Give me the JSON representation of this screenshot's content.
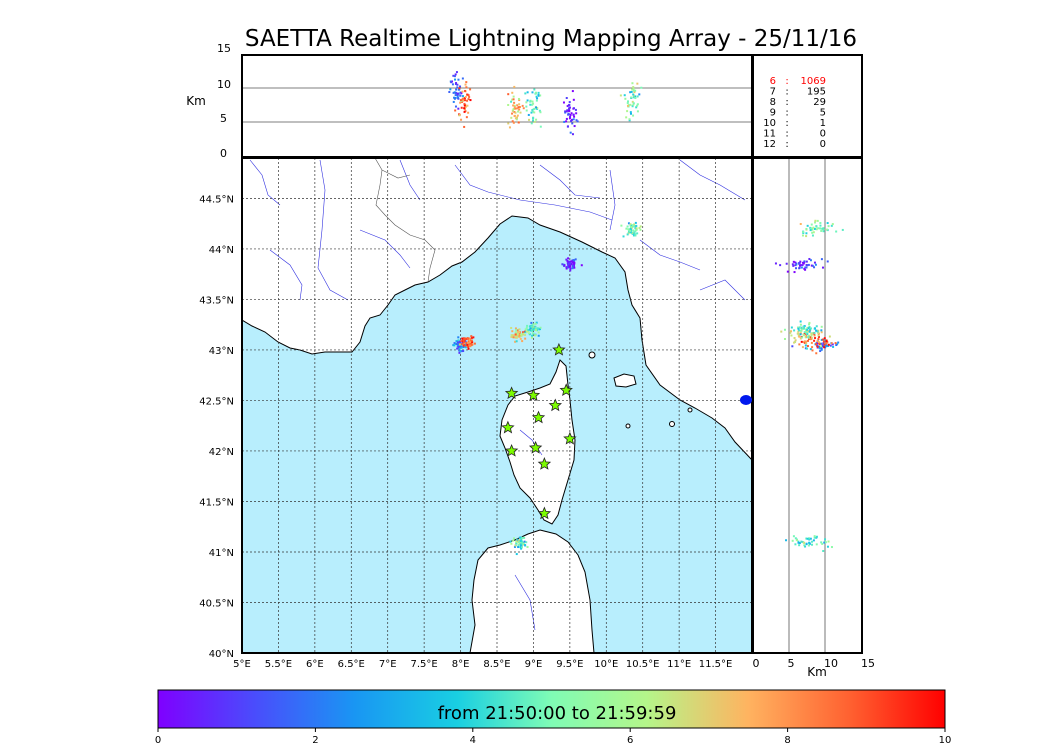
{
  "title": "SAETTA Realtime Lightning Mapping Array - 25/11/16",
  "colorbar": {
    "label": "from 21:50:00 to 21:59:59",
    "ticks": [
      "0",
      "2",
      "4",
      "6",
      "8",
      "10"
    ]
  },
  "chart_data": [
    {
      "type": "scatter",
      "panel": "altitude-vs-longitude",
      "ylabel": "Km",
      "ylim": [
        0,
        15
      ],
      "yticks": [
        "0",
        "5",
        "10",
        "15"
      ],
      "x_range_deg": [
        5,
        12
      ],
      "clusters": [
        {
          "lon": 7.95,
          "alt": 9.5,
          "time": 1.5
        },
        {
          "lon": 8.05,
          "alt": 8.5,
          "time": 8.5
        },
        {
          "lon": 8.75,
          "alt": 7.0,
          "time": 7.0
        },
        {
          "lon": 9.0,
          "alt": 7.5,
          "time": 4.5
        },
        {
          "lon": 9.5,
          "alt": 6.5,
          "time": 0.5
        },
        {
          "lon": 10.35,
          "alt": 8.5,
          "time": 5.0
        }
      ]
    },
    {
      "type": "scatter",
      "panel": "plan-view-map",
      "xlim": [
        5,
        12
      ],
      "ylim": [
        40,
        45
      ],
      "xticks": [
        "5°E",
        "5.5°E",
        "6°E",
        "6.5°E",
        "7°E",
        "7.5°E",
        "8°E",
        "8.5°E",
        "9°E",
        "9.5°E",
        "10°E",
        "10.5°E",
        "11°E",
        "11.5°E"
      ],
      "yticks": [
        "40°N",
        "40.5°N",
        "41°N",
        "41.5°N",
        "42°N",
        "42.5°N",
        "43°N",
        "43.5°N",
        "44°N",
        "44.5°N"
      ],
      "grid": true,
      "clusters": [
        {
          "lon": 8.0,
          "lat": 43.05,
          "time": 2.0
        },
        {
          "lon": 8.1,
          "lat": 43.08,
          "time": 9.0
        },
        {
          "lon": 8.8,
          "lat": 43.15,
          "time": 7.0
        },
        {
          "lon": 9.0,
          "lat": 43.2,
          "time": 4.5
        },
        {
          "lon": 9.5,
          "lat": 43.85,
          "time": 0.5
        },
        {
          "lon": 10.35,
          "lat": 44.2,
          "time": 5.0
        },
        {
          "lon": 8.8,
          "lat": 41.1,
          "time": 4.5
        }
      ],
      "stations": [
        {
          "lon": 9.35,
          "lat": 43.0
        },
        {
          "lon": 8.7,
          "lat": 42.57
        },
        {
          "lon": 9.0,
          "lat": 42.55
        },
        {
          "lon": 9.45,
          "lat": 42.6
        },
        {
          "lon": 9.3,
          "lat": 42.45
        },
        {
          "lon": 9.07,
          "lat": 42.33
        },
        {
          "lon": 8.65,
          "lat": 42.23
        },
        {
          "lon": 9.5,
          "lat": 42.12
        },
        {
          "lon": 9.03,
          "lat": 42.03
        },
        {
          "lon": 8.7,
          "lat": 42.0
        },
        {
          "lon": 9.15,
          "lat": 41.87
        },
        {
          "lon": 9.15,
          "lat": 41.38
        }
      ]
    },
    {
      "type": "scatter",
      "panel": "latitude-vs-altitude",
      "xlabel": "Km",
      "xlim": [
        0,
        15
      ],
      "xticks": [
        "0",
        "5",
        "10",
        "15"
      ]
    },
    {
      "type": "table",
      "panel": "station-count",
      "rows": [
        {
          "stations": "6",
          "sep": ":",
          "count": "1069",
          "highlight": true
        },
        {
          "stations": "7",
          "sep": ":",
          "count": "195",
          "highlight": false
        },
        {
          "stations": "8",
          "sep": ":",
          "count": "29",
          "highlight": false
        },
        {
          "stations": "9",
          "sep": ":",
          "count": "5",
          "highlight": false
        },
        {
          "stations": "10",
          "sep": ":",
          "count": "1",
          "highlight": false
        },
        {
          "stations": "11",
          "sep": ":",
          "count": "0",
          "highlight": false
        },
        {
          "stations": "12",
          "sep": ":",
          "count": "0",
          "highlight": false
        }
      ]
    }
  ]
}
